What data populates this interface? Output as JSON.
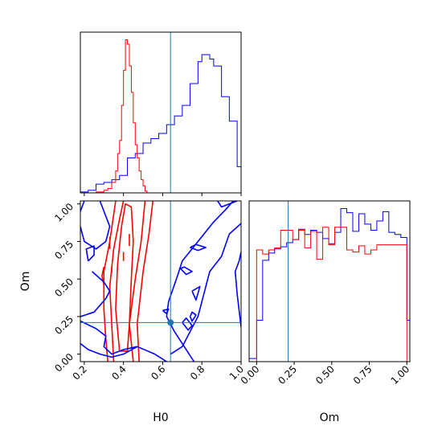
{
  "chart_data": [
    {
      "panel": "H0-marginal",
      "type": "histogram",
      "xlim": [
        0.18,
        1.0
      ],
      "truth": 0.64,
      "colors": {
        "blue": "#0000ff",
        "red": "#ff0000",
        "truth": "#1f77b4"
      },
      "series": [
        {
          "color": "blue",
          "bin_edges": [
            0.18,
            0.22,
            0.26,
            0.3,
            0.34,
            0.38,
            0.42,
            0.46,
            0.5,
            0.54,
            0.58,
            0.62,
            0.66,
            0.7,
            0.74,
            0.78,
            0.8,
            0.82,
            0.84,
            0.86,
            0.9,
            0.94,
            0.98,
            1.0
          ],
          "counts": [
            1,
            3,
            10,
            12,
            15,
            20,
            40,
            45,
            57,
            62,
            68,
            78,
            88,
            100,
            125,
            150,
            158,
            158,
            153,
            145,
            110,
            82,
            30
          ]
        },
        {
          "color": "red",
          "bin_edges": [
            0.26,
            0.3,
            0.32,
            0.34,
            0.36,
            0.37,
            0.38,
            0.39,
            0.4,
            0.41,
            0.42,
            0.43,
            0.44,
            0.45,
            0.46,
            0.47,
            0.48,
            0.49,
            0.5,
            0.51,
            0.52
          ],
          "counts": [
            1,
            3,
            5,
            12,
            25,
            45,
            60,
            100,
            140,
            175,
            170,
            145,
            115,
            80,
            55,
            40,
            25,
            15,
            8,
            2
          ]
        }
      ]
    },
    {
      "panel": "Om-vs-H0",
      "type": "contour",
      "xlim": [
        0.18,
        1.0
      ],
      "ylim": [
        -0.05,
        1.02
      ],
      "truth": {
        "x": 0.64,
        "y": 0.21
      },
      "x_ticks": [
        "0.2",
        "0.4",
        "0.6",
        "0.8",
        "1.0"
      ],
      "y_ticks": [
        "0.00",
        "0.25",
        "0.50",
        "0.75",
        "1.00"
      ],
      "xlabel": "H0",
      "ylabel": "Om",
      "series": [
        {
          "color": "red",
          "contours": [
            [
              [
                0.32,
                -0.05
              ],
              [
                0.31,
                0.1
              ],
              [
                0.3,
                0.3
              ],
              [
                0.3,
                0.55
              ],
              [
                0.33,
                0.75
              ],
              [
                0.36,
                1.02
              ]
            ],
            [
              [
                0.35,
                -0.05
              ],
              [
                0.34,
                0.2
              ],
              [
                0.33,
                0.45
              ],
              [
                0.35,
                0.7
              ],
              [
                0.38,
                0.9
              ],
              [
                0.4,
                1.02
              ]
            ],
            [
              [
                0.38,
                0.02
              ],
              [
                0.36,
                0.3
              ],
              [
                0.37,
                0.6
              ],
              [
                0.39,
                0.85
              ],
              [
                0.41,
                1.0
              ],
              [
                0.44,
                0.98
              ],
              [
                0.45,
                0.75
              ],
              [
                0.44,
                0.5
              ],
              [
                0.43,
                0.2
              ],
              [
                0.42,
                0.02
              ],
              [
                0.38,
                0.02
              ]
            ],
            [
              [
                0.45,
                -0.05
              ],
              [
                0.43,
                0.2
              ],
              [
                0.46,
                0.5
              ],
              [
                0.49,
                0.75
              ],
              [
                0.51,
                1.02
              ]
            ],
            [
              [
                0.48,
                -0.05
              ],
              [
                0.47,
                0.2
              ],
              [
                0.5,
                0.55
              ],
              [
                0.53,
                0.8
              ],
              [
                0.55,
                1.02
              ]
            ],
            [
              [
                0.3,
                0.58
              ],
              [
                0.29,
                0.52
              ],
              [
                0.3,
                0.46
              ]
            ],
            [
              [
                0.4,
                0.68
              ],
              [
                0.4,
                0.62
              ]
            ],
            [
              [
                0.43,
                0.8
              ],
              [
                0.43,
                0.72
              ]
            ],
            [
              [
                0.33,
                0.78
              ],
              [
                0.33,
                0.7
              ]
            ],
            [
              [
                0.34,
                0.58
              ],
              [
                0.34,
                0.54
              ]
            ]
          ]
        },
        {
          "color": "blue",
          "contours": [
            [
              [
                0.18,
                0.22
              ],
              [
                0.26,
                0.17
              ],
              [
                0.31,
                0.12
              ],
              [
                0.3,
                0.05
              ],
              [
                0.34,
                0.0
              ],
              [
                0.4,
                0.03
              ],
              [
                0.47,
                0.05
              ],
              [
                0.56,
                0.0
              ],
              [
                0.62,
                -0.05
              ]
            ],
            [
              [
                0.18,
                0.07
              ],
              [
                0.22,
                0.03
              ],
              [
                0.28,
                0.0
              ],
              [
                0.34,
                -0.02
              ],
              [
                0.4,
                0.0
              ],
              [
                0.47,
                0.05
              ]
            ],
            [
              [
                0.2,
                1.02
              ],
              [
                0.18,
                0.95
              ]
            ],
            [
              [
                0.24,
                0.55
              ],
              [
                0.3,
                0.48
              ],
              [
                0.33,
                0.42
              ],
              [
                0.31,
                0.37
              ],
              [
                0.25,
                0.28
              ],
              [
                0.18,
                0.25
              ]
            ],
            [
              [
                0.28,
                1.02
              ],
              [
                0.33,
                0.85
              ],
              [
                0.31,
                0.75
              ],
              [
                0.26,
                0.7
              ],
              [
                0.2,
                0.75
              ],
              [
                0.18,
                0.85
              ]
            ],
            [
              [
                0.22,
                0.62
              ],
              [
                0.25,
                0.66
              ],
              [
                0.25,
                0.72
              ],
              [
                0.21,
                0.7
              ],
              [
                0.22,
                0.62
              ]
            ],
            [
              [
                0.76,
                -0.05
              ],
              [
                0.71,
                0.05
              ],
              [
                0.66,
                0.15
              ],
              [
                0.62,
                0.25
              ],
              [
                0.63,
                0.35
              ],
              [
                0.67,
                0.5
              ],
              [
                0.7,
                0.62
              ],
              [
                0.78,
                0.75
              ],
              [
                0.86,
                0.88
              ],
              [
                0.92,
                0.96
              ],
              [
                0.96,
                1.02
              ]
            ],
            [
              [
                0.64,
                0.0
              ],
              [
                0.7,
                0.05
              ],
              [
                0.78,
                0.25
              ],
              [
                0.81,
                0.4
              ],
              [
                0.84,
                0.55
              ],
              [
                0.9,
                0.65
              ],
              [
                0.94,
                0.8
              ],
              [
                1.0,
                0.87
              ]
            ],
            [
              [
                1.0,
                0.18
              ],
              [
                0.98,
                0.4
              ],
              [
                0.97,
                0.55
              ],
              [
                0.99,
                0.62
              ],
              [
                1.0,
                0.68
              ]
            ],
            [
              [
                0.69,
                0.57
              ],
              [
                0.72,
                0.53
              ],
              [
                0.75,
                0.55
              ],
              [
                0.71,
                0.58
              ],
              [
                0.69,
                0.57
              ]
            ],
            [
              [
                0.74,
                0.71
              ],
              [
                0.78,
                0.69
              ],
              [
                0.82,
                0.71
              ],
              [
                0.77,
                0.73
              ],
              [
                0.74,
                0.71
              ]
            ],
            [
              [
                0.7,
                0.21
              ],
              [
                0.73,
                0.16
              ],
              [
                0.75,
                0.19
              ],
              [
                0.72,
                0.24
              ],
              [
                0.7,
                0.21
              ]
            ],
            [
              [
                0.6,
                0.29
              ],
              [
                0.62,
                0.27
              ],
              [
                0.63,
                0.3
              ],
              [
                0.6,
                0.29
              ]
            ],
            [
              [
                0.74,
                0.25
              ],
              [
                0.75,
                0.22
              ],
              [
                0.77,
                0.26
              ],
              [
                0.75,
                0.28
              ],
              [
                0.74,
                0.25
              ]
            ],
            [
              [
                0.75,
                0.42
              ],
              [
                0.77,
                0.36
              ],
              [
                0.79,
                0.45
              ],
              [
                0.75,
                0.42
              ]
            ],
            [
              [
                0.88,
                1.02
              ],
              [
                0.9,
                0.98
              ],
              [
                0.94,
                1.0
              ],
              [
                0.98,
                1.02
              ]
            ]
          ]
        }
      ]
    },
    {
      "panel": "Om-marginal",
      "type": "histogram",
      "xlim": [
        -0.05,
        1.02
      ],
      "truth": 0.21,
      "x_ticks": [
        "0.00",
        "0.25",
        "0.50",
        "0.75",
        "1.00"
      ],
      "xlabel": "Om",
      "series": [
        {
          "color": "blue",
          "bin_edges": [
            -0.05,
            0.0,
            0.04,
            0.08,
            0.12,
            0.16,
            0.2,
            0.24,
            0.28,
            0.32,
            0.36,
            0.4,
            0.44,
            0.48,
            0.52,
            0.56,
            0.6,
            0.64,
            0.68,
            0.72,
            0.76,
            0.8,
            0.84,
            0.88,
            0.92,
            0.96,
            1.0,
            1.02
          ],
          "counts": [
            3,
            40,
            98,
            105,
            109,
            111,
            115,
            118,
            128,
            123,
            127,
            125,
            119,
            114,
            125,
            148,
            144,
            126,
            143,
            133,
            127,
            136,
            145,
            125,
            123,
            120,
            40
          ]
        },
        {
          "color": "red",
          "bin_edges": [
            0.0,
            0.04,
            0.08,
            0.12,
            0.16,
            0.2,
            0.24,
            0.28,
            0.32,
            0.36,
            0.4,
            0.44,
            0.48,
            0.52,
            0.56,
            0.6,
            0.64,
            0.68,
            0.72,
            0.76,
            0.8,
            0.84,
            0.88,
            0.92,
            0.96,
            1.0
          ],
          "counts": [
            108,
            104,
            108,
            110,
            127,
            127,
            118,
            127,
            110,
            126,
            99,
            130,
            113,
            130,
            130,
            108,
            106,
            112,
            104,
            108,
            113,
            113,
            113,
            113,
            113
          ]
        }
      ]
    }
  ]
}
